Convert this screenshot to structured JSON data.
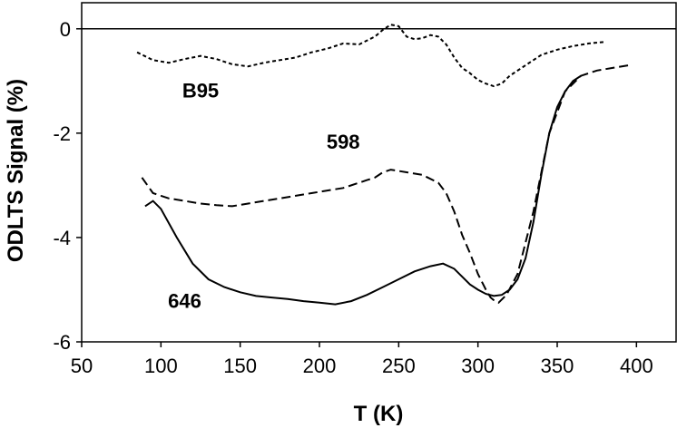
{
  "chart_data": {
    "type": "line",
    "title": "",
    "xlabel": "T (K)",
    "ylabel": "ODLTS Signal (%)",
    "xlim": [
      50,
      425
    ],
    "ylim": [
      -6,
      0.5
    ],
    "xticks": [
      50,
      100,
      150,
      200,
      250,
      300,
      350,
      400
    ],
    "yticks": [
      0,
      -2,
      -4,
      -6
    ],
    "xtick_labels": [
      "50",
      "100",
      "150",
      "200",
      "250",
      "300",
      "350",
      "400"
    ],
    "ytick_labels": [
      "0",
      "-2",
      "-4",
      "-6"
    ],
    "reference_line_y": 0,
    "grid": false,
    "legend": "none",
    "series": [
      {
        "name": "B95",
        "style": "dotted",
        "x": [
          85,
          95,
          105,
          115,
          125,
          135,
          145,
          155,
          165,
          175,
          185,
          195,
          205,
          215,
          225,
          235,
          240,
          245,
          250,
          255,
          260,
          265,
          270,
          275,
          280,
          285,
          290,
          295,
          300,
          305,
          310,
          315,
          320,
          330,
          340,
          350,
          360,
          370,
          380
        ],
        "y": [
          -0.45,
          -0.6,
          -0.65,
          -0.58,
          -0.52,
          -0.58,
          -0.68,
          -0.72,
          -0.65,
          -0.6,
          -0.55,
          -0.45,
          -0.38,
          -0.28,
          -0.3,
          -0.15,
          -0.02,
          0.08,
          0.05,
          -0.15,
          -0.2,
          -0.18,
          -0.12,
          -0.15,
          -0.3,
          -0.55,
          -0.75,
          -0.85,
          -0.98,
          -1.05,
          -1.1,
          -1.05,
          -0.9,
          -0.7,
          -0.5,
          -0.4,
          -0.33,
          -0.28,
          -0.25
        ]
      },
      {
        "name": "598",
        "style": "dashed",
        "x": [
          88,
          95,
          105,
          115,
          125,
          135,
          145,
          155,
          165,
          175,
          185,
          195,
          205,
          215,
          225,
          230,
          235,
          240,
          245,
          255,
          265,
          275,
          280,
          285,
          290,
          295,
          300,
          305,
          308,
          310,
          313,
          318,
          325,
          335,
          345,
          355,
          365,
          375,
          385,
          395
        ],
        "y": [
          -2.85,
          -3.15,
          -3.25,
          -3.3,
          -3.35,
          -3.38,
          -3.4,
          -3.35,
          -3.3,
          -3.25,
          -3.2,
          -3.15,
          -3.1,
          -3.05,
          -2.95,
          -2.9,
          -2.85,
          -2.75,
          -2.7,
          -2.75,
          -2.8,
          -2.95,
          -3.15,
          -3.5,
          -3.95,
          -4.3,
          -4.7,
          -5.0,
          -5.15,
          -5.2,
          -5.25,
          -5.1,
          -4.7,
          -3.5,
          -2.0,
          -1.2,
          -0.9,
          -0.8,
          -0.75,
          -0.7
        ]
      },
      {
        "name": "646",
        "style": "solid",
        "x": [
          90,
          95,
          100,
          110,
          120,
          130,
          140,
          150,
          160,
          170,
          180,
          190,
          200,
          210,
          220,
          230,
          240,
          250,
          260,
          270,
          278,
          285,
          290,
          295,
          300,
          305,
          310,
          315,
          320,
          325,
          330,
          335,
          340,
          345,
          350,
          355,
          360,
          365
        ],
        "y": [
          -3.4,
          -3.3,
          -3.45,
          -4.0,
          -4.5,
          -4.8,
          -4.95,
          -5.05,
          -5.12,
          -5.15,
          -5.18,
          -5.22,
          -5.25,
          -5.28,
          -5.22,
          -5.1,
          -4.95,
          -4.8,
          -4.65,
          -4.55,
          -4.5,
          -4.6,
          -4.75,
          -4.9,
          -5.0,
          -5.08,
          -5.12,
          -5.1,
          -5.0,
          -4.8,
          -4.4,
          -3.7,
          -2.8,
          -2.0,
          -1.5,
          -1.2,
          -1.0,
          -0.9
        ]
      }
    ],
    "annotations": [
      {
        "text": "B95",
        "x": 125,
        "y": -1.32
      },
      {
        "text": "598",
        "x": 215,
        "y": -2.3
      },
      {
        "text": "646",
        "x": 115,
        "y": -5.35
      }
    ]
  }
}
